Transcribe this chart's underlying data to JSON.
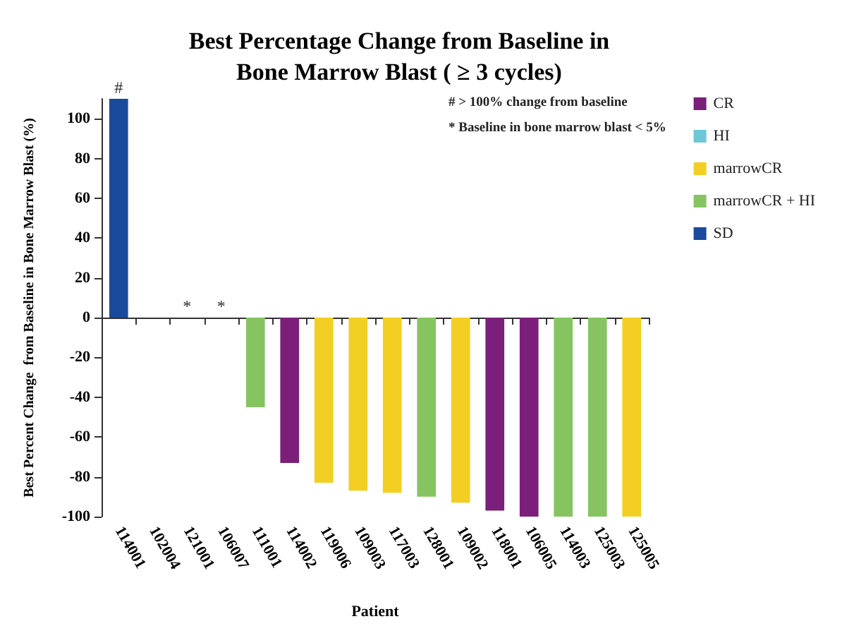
{
  "chart_data": {
    "type": "bar",
    "title": "Best Percentage Change from Baseline in\nBone Marrow Blast ( ≥ 3 cycles)",
    "xlabel": "Patient",
    "ylabel": "Best Percent Change  from Baseline in Bone Marrow Blast (%)",
    "categories": [
      "114001",
      "102004",
      "121001",
      "106007",
      "111001",
      "114002",
      "119006",
      "109003",
      "117003",
      "128001",
      "109002",
      "118001",
      "106005",
      "114003",
      "125003",
      "125005"
    ],
    "series": [
      {
        "name": "CR",
        "color": "#7b1f7a",
        "values": [
          null,
          null,
          null,
          null,
          null,
          -73,
          null,
          null,
          null,
          null,
          null,
          -97,
          -100,
          null,
          null,
          null
        ]
      },
      {
        "name": "HI",
        "color": "#6cc7d6",
        "values": [
          null,
          0,
          0,
          0,
          null,
          null,
          null,
          null,
          null,
          null,
          null,
          null,
          null,
          null,
          null,
          null
        ]
      },
      {
        "name": "marrowCR",
        "color": "#f2cf22",
        "values": [
          null,
          null,
          null,
          null,
          null,
          null,
          -83,
          -87,
          -88,
          null,
          -93,
          null,
          null,
          null,
          null,
          -100
        ]
      },
      {
        "name": "marrowCR + HI",
        "color": "#86c462",
        "values": [
          null,
          null,
          null,
          null,
          -45,
          null,
          null,
          null,
          null,
          -90,
          null,
          null,
          null,
          -100,
          -100,
          null
        ]
      },
      {
        "name": "SD",
        "color": "#1a4a9c",
        "values": [
          110,
          null,
          null,
          null,
          null,
          null,
          null,
          null,
          null,
          null,
          null,
          null,
          null,
          null,
          null,
          null
        ]
      }
    ],
    "ylim": [
      -100,
      110
    ],
    "yticks": [
      -100,
      -80,
      -60,
      -40,
      -20,
      0,
      20,
      40,
      60,
      80,
      100
    ],
    "legend": "right",
    "annotations": [
      "# > 100% change from baseline",
      "* Baseline in bone marrow blast < 5%",
      {
        "text": "#",
        "x": "114001",
        "y": 110
      },
      {
        "text": "*",
        "x": "121001",
        "y": 0
      },
      {
        "text": "*",
        "x": "106007",
        "y": 0
      }
    ]
  }
}
